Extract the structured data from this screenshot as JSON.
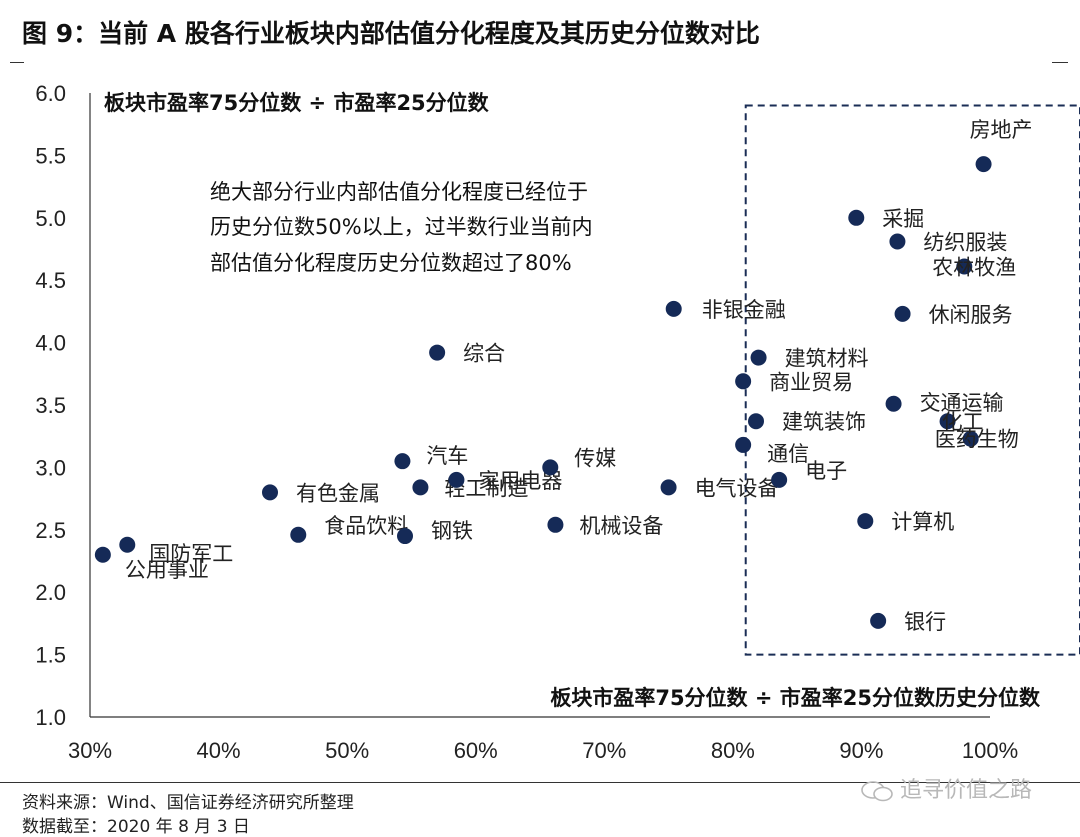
{
  "figure": {
    "title": "图 9：当前 A 股各行业板块内部估值分化程度及其历史分位数对比",
    "source": "资料来源：Wind、国信证券经济研究所整理",
    "date_note": "数据截至：2020 年 8 月 3 日",
    "watermark": "追寻价值之路"
  },
  "colors": {
    "point": "#152a57",
    "box": "#1a2d55",
    "axis": "#333333"
  },
  "chart_data": {
    "type": "scatter",
    "title": "",
    "xlabel": "板块市盈率75分位数 ÷ 市盈率25分位数历史分位数",
    "ylabel": "板块市盈率75分位数 ÷ 市盈率25分位数",
    "xlim": [
      0.3,
      1.0
    ],
    "ylim": [
      1.0,
      6.0
    ],
    "x_ticks": [
      0.3,
      0.4,
      0.5,
      0.6,
      0.7,
      0.8,
      0.9,
      1.0
    ],
    "x_tick_labels": [
      "30%",
      "40%",
      "50%",
      "60%",
      "70%",
      "80%",
      "90%",
      "100%"
    ],
    "y_ticks": [
      1.0,
      1.5,
      2.0,
      2.5,
      3.0,
      3.5,
      4.0,
      4.5,
      5.0,
      5.5,
      6.0
    ],
    "y_tick_labels": [
      "1.0",
      "1.5",
      "2.0",
      "2.5",
      "3.0",
      "3.5",
      "4.0",
      "4.5",
      "5.0",
      "5.5",
      "6.0"
    ],
    "grid": false,
    "annotation": [
      "绝大部分行业内部估值分化程度已经位于",
      "历史分位数50%以上，过半数行业当前内",
      "部估值分化程度历史分位数超过了80%"
    ],
    "highlight_box": {
      "x_range": [
        0.81,
        1.07
      ],
      "y_range": [
        1.5,
        5.9
      ]
    },
    "points": [
      {
        "name": "公用事业",
        "x": 0.31,
        "y": 2.3
      },
      {
        "name": "国防军工",
        "x": 0.329,
        "y": 2.38
      },
      {
        "name": "有色金属",
        "x": 0.44,
        "y": 2.8
      },
      {
        "name": "食品饮料",
        "x": 0.462,
        "y": 2.46
      },
      {
        "name": "汽车",
        "x": 0.543,
        "y": 3.05
      },
      {
        "name": "钢铁",
        "x": 0.545,
        "y": 2.45
      },
      {
        "name": "轻工制造",
        "x": 0.557,
        "y": 2.84
      },
      {
        "name": "综合",
        "x": 0.57,
        "y": 3.92
      },
      {
        "name": "家用电器",
        "x": 0.585,
        "y": 2.9
      },
      {
        "name": "传媒",
        "x": 0.658,
        "y": 3.0
      },
      {
        "name": "机械设备",
        "x": 0.662,
        "y": 2.54
      },
      {
        "name": "电气设备",
        "x": 0.75,
        "y": 2.84
      },
      {
        "name": "非银金融",
        "x": 0.754,
        "y": 4.27
      },
      {
        "name": "通信",
        "x": 0.808,
        "y": 3.18
      },
      {
        "name": "商业贸易",
        "x": 0.808,
        "y": 3.69
      },
      {
        "name": "建筑装饰",
        "x": 0.818,
        "y": 3.37
      },
      {
        "name": "建筑材料",
        "x": 0.82,
        "y": 3.88
      },
      {
        "name": "电子",
        "x": 0.836,
        "y": 2.9
      },
      {
        "name": "采掘",
        "x": 0.896,
        "y": 5.0
      },
      {
        "name": "计算机",
        "x": 0.903,
        "y": 2.57
      },
      {
        "name": "银行",
        "x": 0.913,
        "y": 1.77
      },
      {
        "name": "交通运输",
        "x": 0.925,
        "y": 3.51
      },
      {
        "name": "纺织服装",
        "x": 0.928,
        "y": 4.81
      },
      {
        "name": "休闲服务",
        "x": 0.932,
        "y": 4.23
      },
      {
        "name": "化工",
        "x": 0.967,
        "y": 3.37
      },
      {
        "name": "农林牧渔",
        "x": 0.98,
        "y": 4.61
      },
      {
        "name": "医药生物",
        "x": 0.985,
        "y": 3.23
      },
      {
        "name": "房地产",
        "x": 0.995,
        "y": 5.43
      }
    ]
  }
}
